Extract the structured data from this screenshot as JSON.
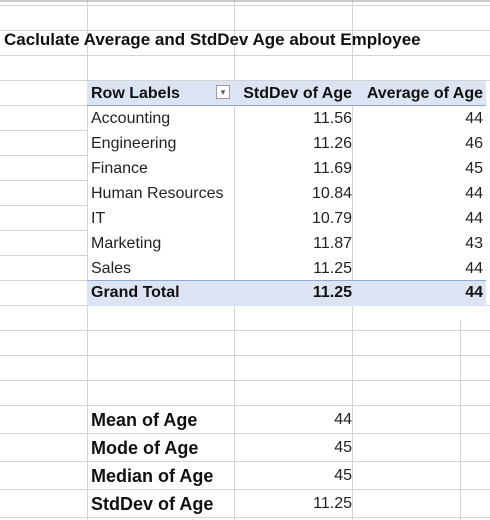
{
  "sheet": {
    "title": "Caclulate Average and StdDev Age about Employee"
  },
  "pivot": {
    "headers": {
      "row_labels": "Row Labels",
      "stddev": "StdDev of Age",
      "average": "Average of Age",
      "filter_icon": "dropdown-arrow-icon"
    },
    "rows": [
      {
        "label": "Accounting",
        "stddev": "11.56",
        "average": "44"
      },
      {
        "label": "Engineering",
        "stddev": "11.26",
        "average": "46"
      },
      {
        "label": "Finance",
        "stddev": "11.69",
        "average": "45"
      },
      {
        "label": "Human Resources",
        "stddev": "10.84",
        "average": "44"
      },
      {
        "label": "IT",
        "stddev": "10.79",
        "average": "44"
      },
      {
        "label": "Marketing",
        "stddev": "11.87",
        "average": "43"
      },
      {
        "label": "Sales",
        "stddev": "11.25",
        "average": "44"
      }
    ],
    "grand_total": {
      "label": "Grand Total",
      "stddev": "11.25",
      "average": "44"
    }
  },
  "stats": [
    {
      "label": "Mean of  Age",
      "value": "44"
    },
    {
      "label": "Mode of Age",
      "value": "45"
    },
    {
      "label": "Median of Age",
      "value": "45"
    },
    {
      "label": "StdDev of Age",
      "value": "11.25"
    }
  ],
  "colors": {
    "pivot_header_fill": "#dce3f2",
    "pivot_border": "#8ea9db",
    "gridline": "#d4d4d4"
  }
}
